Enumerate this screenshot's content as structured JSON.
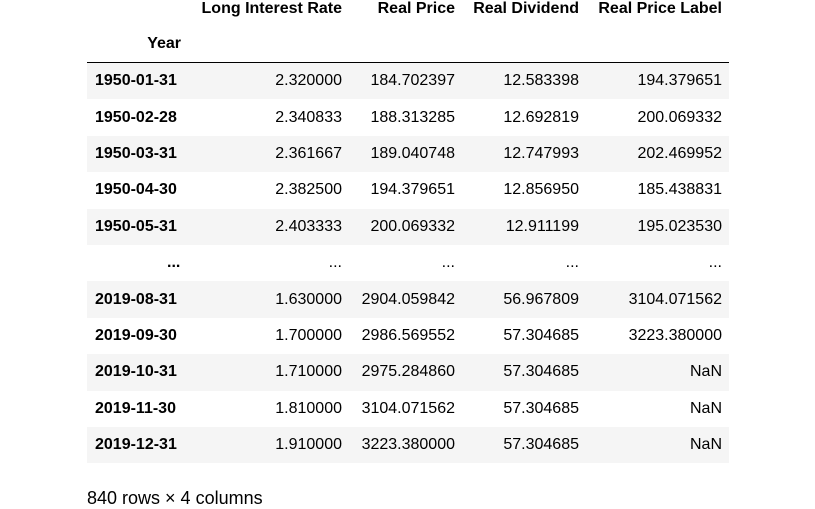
{
  "table": {
    "columns": [
      "Long Interest Rate",
      "Real Price",
      "Real Dividend",
      "Real Price Label"
    ],
    "index_name": "Year",
    "rows": [
      {
        "index": "1950-01-31",
        "cells": [
          "2.320000",
          "184.702397",
          "12.583398",
          "194.379651"
        ]
      },
      {
        "index": "1950-02-28",
        "cells": [
          "2.340833",
          "188.313285",
          "12.692819",
          "200.069332"
        ]
      },
      {
        "index": "1950-03-31",
        "cells": [
          "2.361667",
          "189.040748",
          "12.747993",
          "202.469952"
        ]
      },
      {
        "index": "1950-04-30",
        "cells": [
          "2.382500",
          "194.379651",
          "12.856950",
          "185.438831"
        ]
      },
      {
        "index": "1950-05-31",
        "cells": [
          "2.403333",
          "200.069332",
          "12.911199",
          "195.023530"
        ]
      },
      {
        "index": "...",
        "cells": [
          "...",
          "...",
          "...",
          "..."
        ]
      },
      {
        "index": "2019-08-31",
        "cells": [
          "1.630000",
          "2904.059842",
          "56.967809",
          "3104.071562"
        ]
      },
      {
        "index": "2019-09-30",
        "cells": [
          "1.700000",
          "2986.569552",
          "57.304685",
          "3223.380000"
        ]
      },
      {
        "index": "2019-10-31",
        "cells": [
          "1.710000",
          "2975.284860",
          "57.304685",
          "NaN"
        ]
      },
      {
        "index": "2019-11-30",
        "cells": [
          "1.810000",
          "3104.071562",
          "57.304685",
          "NaN"
        ]
      },
      {
        "index": "2019-12-31",
        "cells": [
          "1.910000",
          "3223.380000",
          "57.304685",
          "NaN"
        ]
      }
    ],
    "shape_text": "840 rows × 4 columns"
  }
}
